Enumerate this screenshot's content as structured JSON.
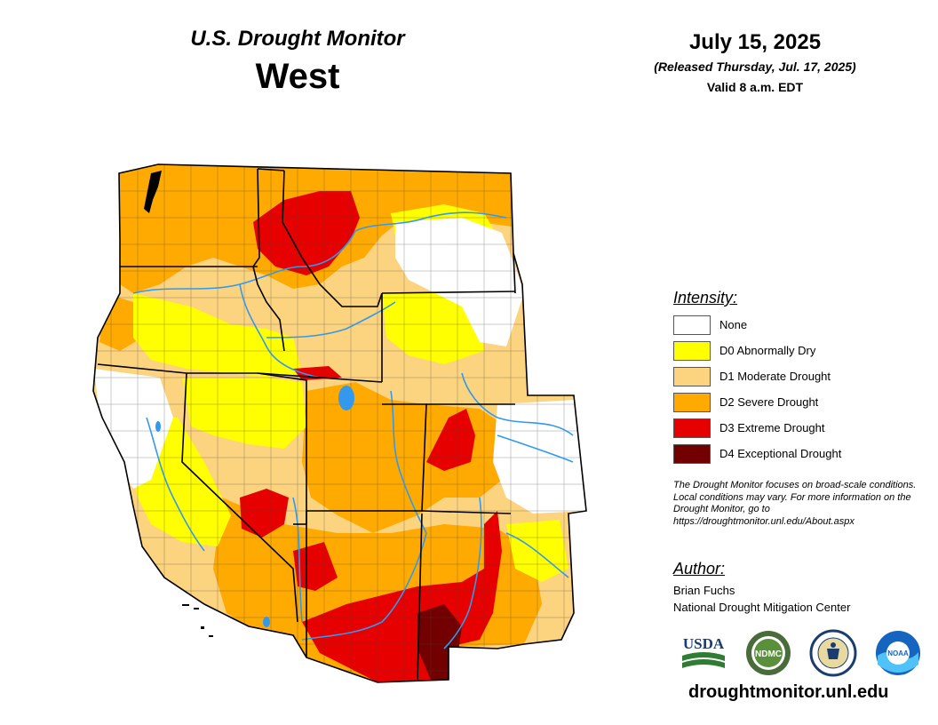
{
  "header": {
    "product": "U.S. Drought Monitor",
    "region": "West",
    "date": "July 15, 2025",
    "released": "(Released Thursday, Jul. 17, 2025)",
    "valid": "Valid 8 a.m. EDT"
  },
  "legend": {
    "title": "Intensity:",
    "items": [
      {
        "label": "None",
        "color": "#ffffff"
      },
      {
        "label": "D0 Abnormally Dry",
        "color": "#ffff00"
      },
      {
        "label": "D1 Moderate Drought",
        "color": "#fcd37f"
      },
      {
        "label": "D2 Severe Drought",
        "color": "#ffaa00"
      },
      {
        "label": "D3 Extreme Drought",
        "color": "#e60000"
      },
      {
        "label": "D4 Exceptional Drought",
        "color": "#730000"
      }
    ]
  },
  "disclaimer": "The Drought Monitor focuses on broad-scale conditions. Local conditions may vary. For more information on the Drought Monitor, go to https://droughtmonitor.unl.edu/About.aspx",
  "author": {
    "title": "Author:",
    "name": "Brian Fuchs",
    "organization": "National Drought Mitigation Center"
  },
  "logos": [
    {
      "name": "usda-logo",
      "text": "USDA"
    },
    {
      "name": "ndmc-logo",
      "text": "NDMC"
    },
    {
      "name": "commerce-seal-logo",
      "text": ""
    },
    {
      "name": "noaa-logo",
      "text": "NOAA"
    }
  ],
  "website": "droughtmonitor.unl.edu",
  "colors": {
    "river": "#3399ee",
    "border": "#000000",
    "county": "#444444"
  }
}
